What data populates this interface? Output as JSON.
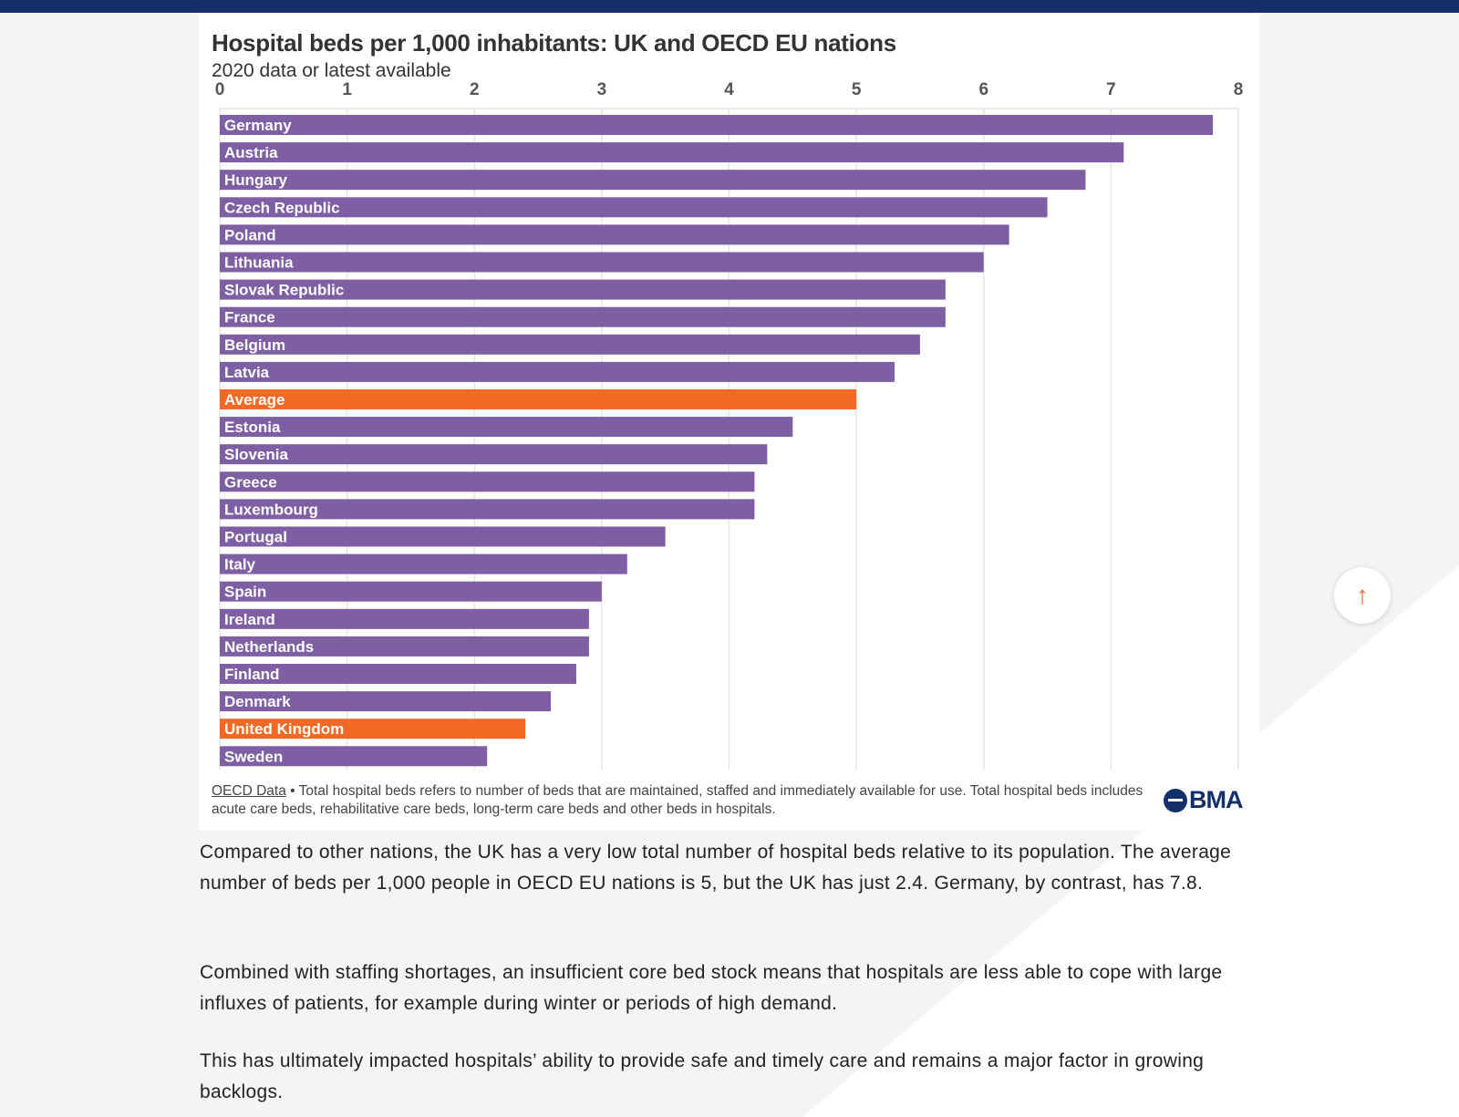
{
  "chart_data": {
    "type": "bar",
    "orientation": "horizontal",
    "title": "Hospital beds per 1,000 inhabitants: UK and OECD EU nations",
    "subtitle": "2020 data or latest available",
    "xlim": [
      0,
      8
    ],
    "ticks": [
      "0",
      "1",
      "2",
      "3",
      "4",
      "5",
      "6",
      "7",
      "8"
    ],
    "grid": true,
    "categories": [
      "Germany",
      "Austria",
      "Hungary",
      "Czech Republic",
      "Poland",
      "Lithuania",
      "Slovak Republic",
      "France",
      "Belgium",
      "Latvia",
      "Average",
      "Estonia",
      "Slovenia",
      "Greece",
      "Luxembourg",
      "Portugal",
      "Italy",
      "Spain",
      "Ireland",
      "Netherlands",
      "Finland",
      "Denmark",
      "United Kingdom",
      "Sweden"
    ],
    "values": [
      7.8,
      7.1,
      6.8,
      6.5,
      6.2,
      6.0,
      5.7,
      5.7,
      5.5,
      5.3,
      5.0,
      4.5,
      4.3,
      4.2,
      4.2,
      3.5,
      3.2,
      3.0,
      2.9,
      2.9,
      2.8,
      2.6,
      2.4,
      2.1
    ],
    "highlight": [
      "Average",
      "United Kingdom"
    ],
    "colors": {
      "default": "#7f5fa3",
      "highlight": "#f06a25"
    }
  },
  "footer": {
    "source_link": "OECD Data",
    "note": " • Total hospital beds refers to number of beds that are maintained, staffed and immediately available for use. Total hospital beds includes acute care beds, rehabilitative care beds, long-term care beds and other beds in hospitals.",
    "logo": "BMA"
  },
  "paragraphs": [
    "Compared to other nations, the UK has a very low total number of hospital beds relative to its population. The average number of beds per 1,000 people in OECD EU nations is 5, but the UK has just 2.4. Germany, by contrast, has 7.8.",
    "Combined with staffing shortages, an insufficient core bed stock means that hospitals are less able to cope with large influxes of patients, for example during winter or periods of high demand.",
    "This has ultimately impacted hospitals’ ability to provide safe and timely care and remains a major factor in growing backlogs."
  ],
  "scroll_top": {
    "icon": "arrow-up-icon",
    "glyph": "↑"
  },
  "colors": {
    "topbar": "#13306b",
    "accent": "#f06a25"
  }
}
